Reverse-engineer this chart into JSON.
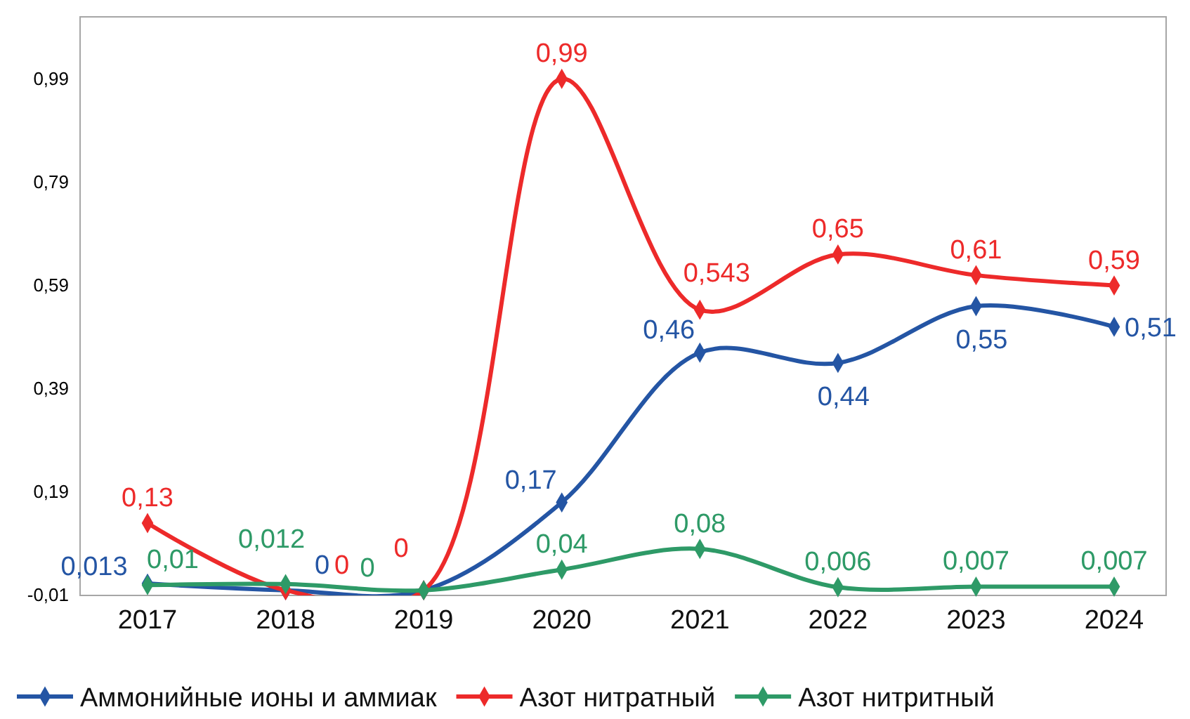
{
  "chart_data": {
    "type": "line",
    "categories": [
      "2017",
      "2018",
      "2019",
      "2020",
      "2021",
      "2022",
      "2023",
      "2024"
    ],
    "ylim": [
      -0.01,
      1.11
    ],
    "yticks": [
      {
        "value": -0.01,
        "label": "-0,01"
      },
      {
        "value": 0.19,
        "label": "0,19"
      },
      {
        "value": 0.39,
        "label": "0,39"
      },
      {
        "value": 0.59,
        "label": "0,59"
      },
      {
        "value": 0.79,
        "label": "0,79"
      },
      {
        "value": 0.99,
        "label": "0,99"
      }
    ],
    "grid": false,
    "legend": "bottom",
    "marker": "diamond",
    "line_style": "solid",
    "series": [
      {
        "name": "Аммонийные ионы и аммиак",
        "color": "#2455a4",
        "values": [
          0.013,
          0,
          0,
          0.17,
          0.46,
          0.44,
          0.55,
          0.51
        ],
        "value_labels": [
          "0,013",
          "0",
          null,
          "0,17",
          "0,46",
          "0,44",
          "0,55",
          "0,51"
        ]
      },
      {
        "name": "Азот нитратный",
        "color": "#ed2a2a",
        "values": [
          0.13,
          0,
          0,
          0.99,
          0.543,
          0.65,
          0.61,
          0.59
        ],
        "value_labels": [
          "0,13",
          "0",
          "0",
          "0,99",
          "0,543",
          "0,65",
          "0,61",
          "0,59"
        ]
      },
      {
        "name": "Азот нитритный",
        "color": "#2e9a67",
        "values": [
          0.01,
          0.012,
          0,
          0.04,
          0.08,
          0.006,
          0.007,
          0.007
        ],
        "value_labels": [
          "0,01",
          "0,012",
          "0",
          "0,04",
          "0,08",
          "0,006",
          "0,007",
          "0,007"
        ]
      }
    ]
  }
}
